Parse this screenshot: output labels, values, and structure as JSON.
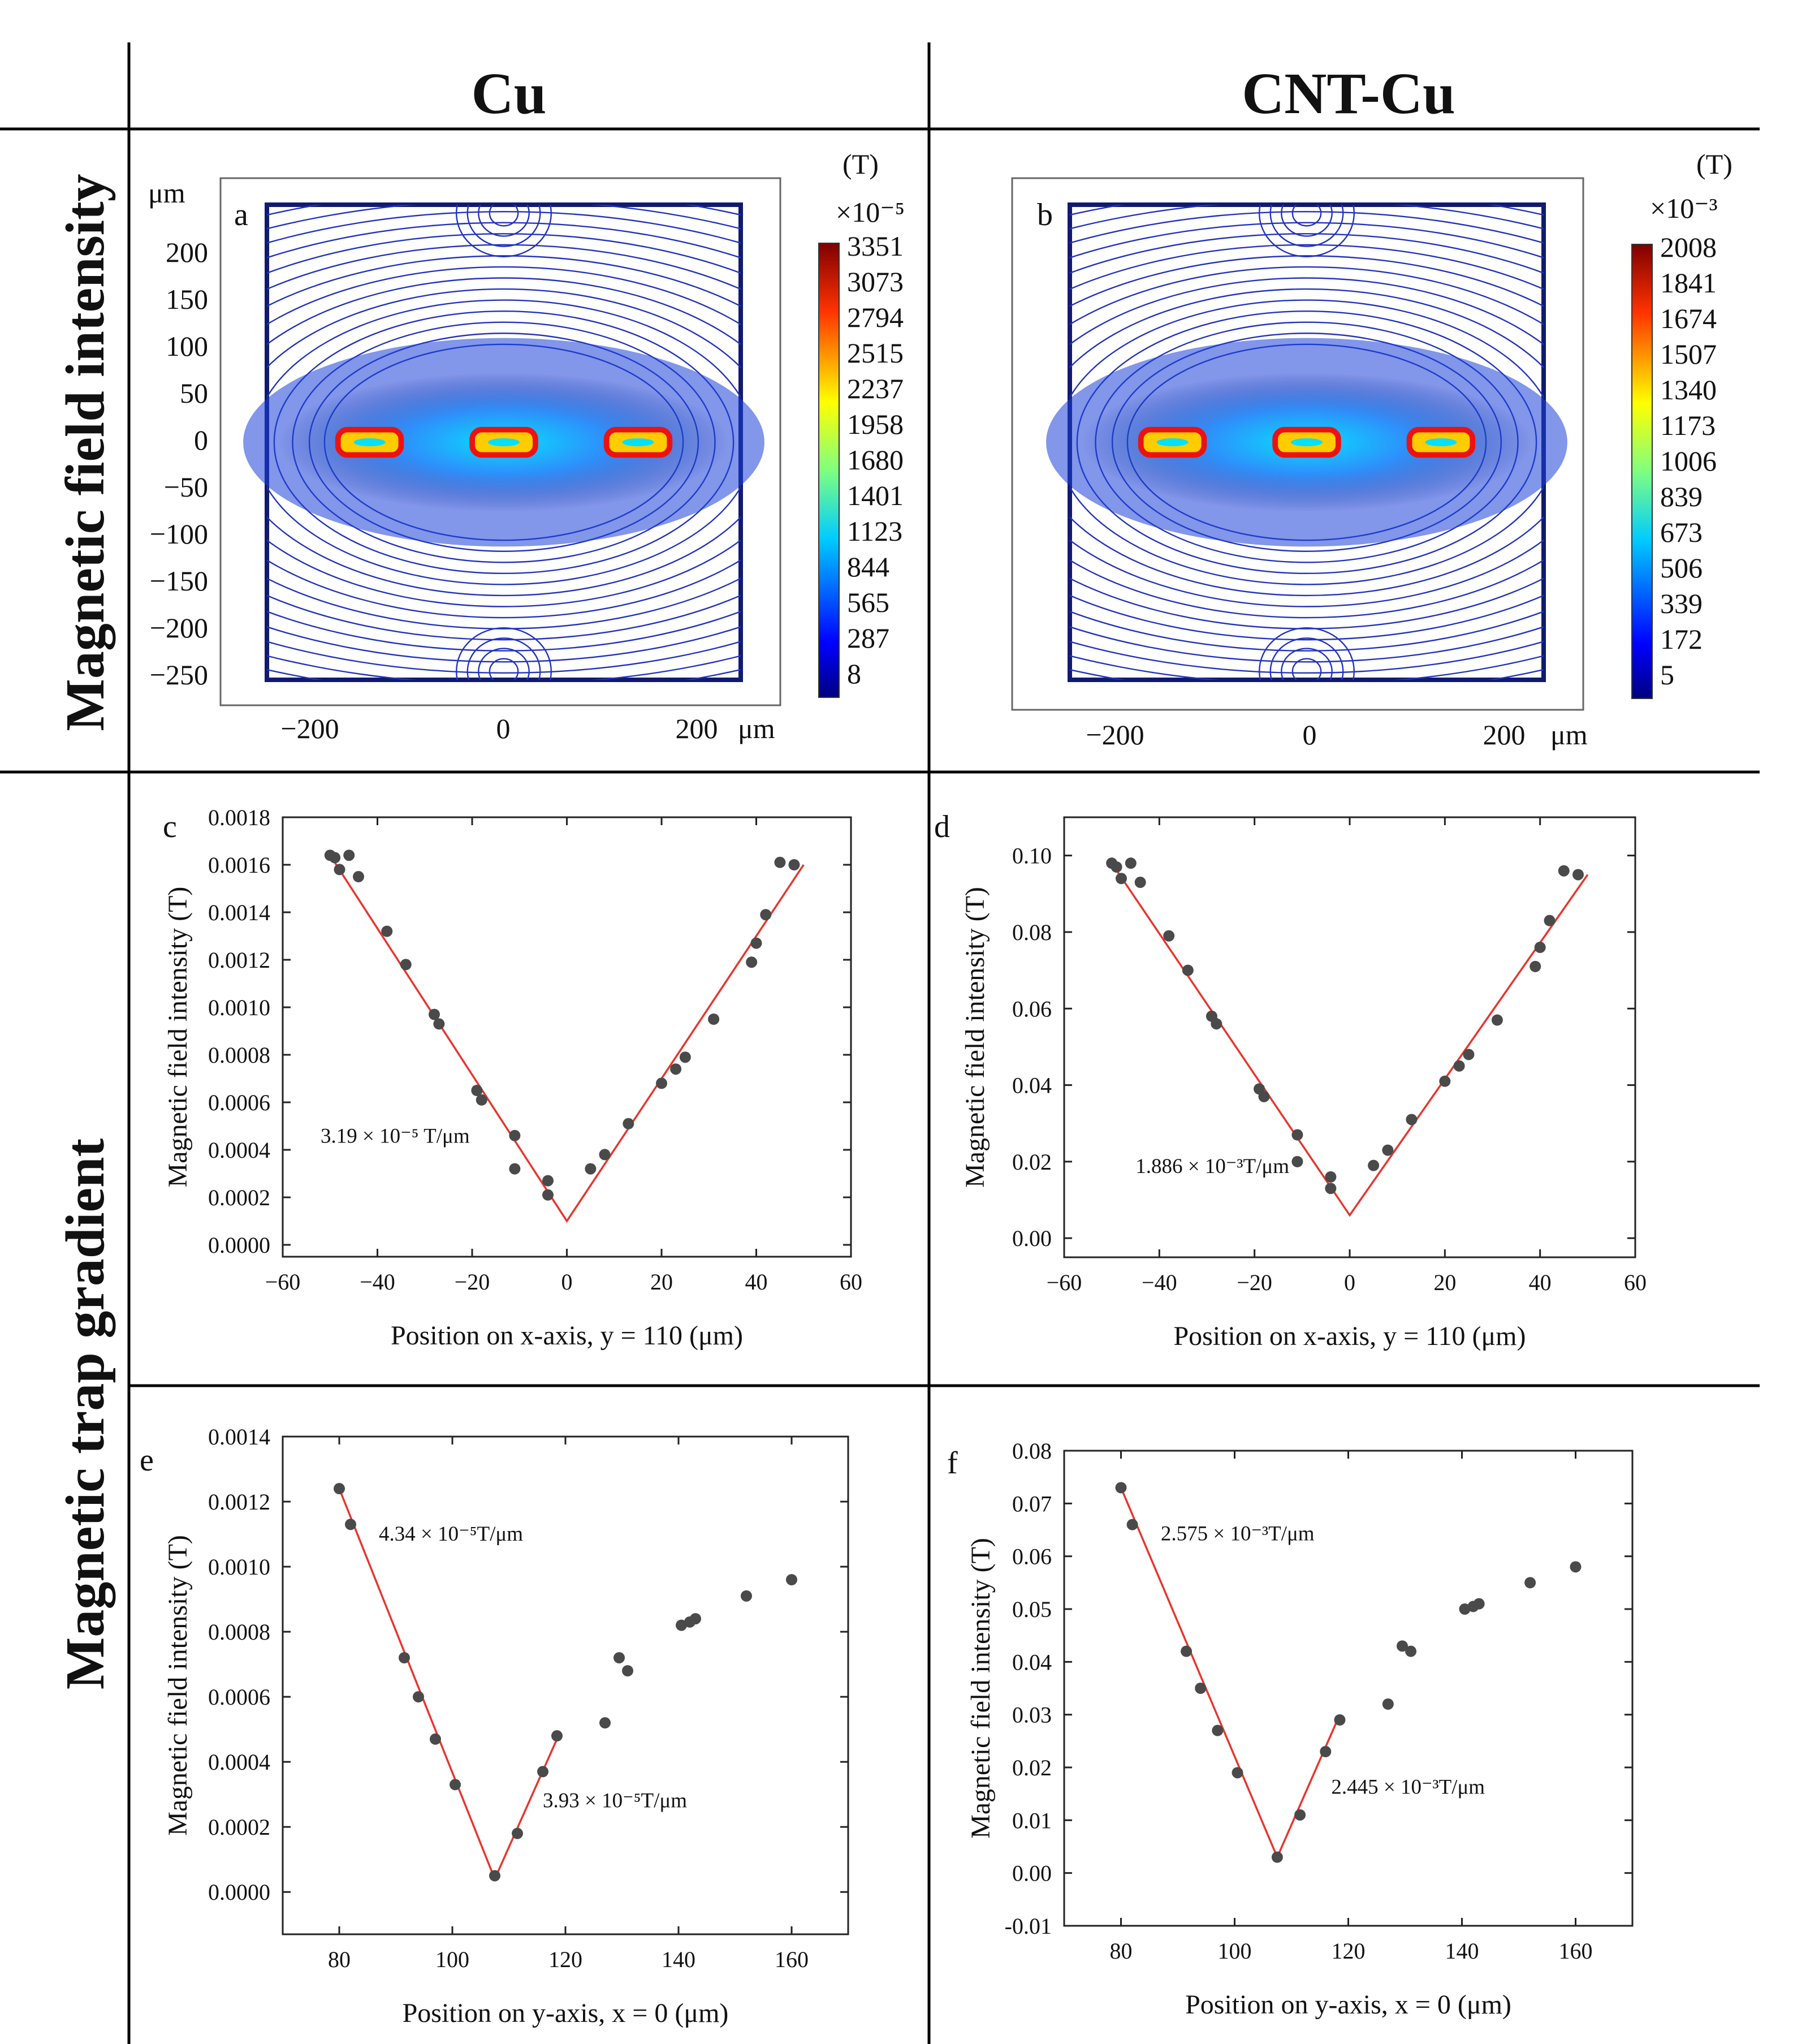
{
  "header": {
    "col1": "Cu",
    "col2": "CNT-Cu"
  },
  "rows": {
    "row1": "Magnetic field intensity",
    "row2": "Magnetic trap gradient"
  },
  "maps": [
    {
      "panel": "a",
      "unit_label": "(T)",
      "scale_label": "×10⁻⁵",
      "y_unit": "μm",
      "x_unit": "μm",
      "colorbar_ticks": [
        "3351",
        "3073",
        "2794",
        "2515",
        "2237",
        "1958",
        "1680",
        "1401",
        "1123",
        "844",
        "565",
        "287",
        "8"
      ],
      "y_ticks": [
        "200",
        "150",
        "100",
        "50",
        "0",
        "−50",
        "−100",
        "−150",
        "−200",
        "−250"
      ],
      "x_ticks": [
        "−200",
        "0",
        "200"
      ]
    },
    {
      "panel": "b",
      "unit_label": "(T)",
      "scale_label": "×10⁻³",
      "x_unit": "μm",
      "colorbar_ticks": [
        "2008",
        "1841",
        "1674",
        "1507",
        "1340",
        "1173",
        "1006",
        "839",
        "673",
        "506",
        "339",
        "172",
        "5"
      ],
      "x_ticks": [
        "−200",
        "0",
        "200"
      ]
    }
  ],
  "colors": {
    "colormap": [
      "#00007f",
      "#0000ff",
      "#007fff",
      "#00ffff",
      "#7fff7f",
      "#ffff00",
      "#ff7f00",
      "#ff0000",
      "#7f0000"
    ],
    "points": "#4a4a4a",
    "fit": "#e8352e",
    "contour": "#2233bb"
  },
  "chart_data": [
    {
      "panel": "c",
      "type": "scatter",
      "xlabel": "Position on x-axis, y = 110 (μm)",
      "ylabel": "Magnetic field intensity (T)",
      "xlim": [
        -60,
        60
      ],
      "ylim": [
        -5e-05,
        0.0018
      ],
      "x_ticks": [
        "−60",
        "−40",
        "−20",
        "0",
        "20",
        "40",
        "60"
      ],
      "y_ticks": [
        "0.0000",
        "0.0002",
        "0.0004",
        "0.0006",
        "0.0008",
        "0.0010",
        "0.0012",
        "0.0014",
        "0.0016",
        "0.0018"
      ],
      "points": [
        [
          -50,
          0.00164
        ],
        [
          -49,
          0.00163
        ],
        [
          -48,
          0.00158
        ],
        [
          -46,
          0.00164
        ],
        [
          -44,
          0.00155
        ],
        [
          -38,
          0.00132
        ],
        [
          -34,
          0.00118
        ],
        [
          -28,
          0.00097
        ],
        [
          -27,
          0.00093
        ],
        [
          -19,
          0.00065
        ],
        [
          -18,
          0.00061
        ],
        [
          -11,
          0.00046
        ],
        [
          -11,
          0.00032
        ],
        [
          -4,
          0.00027
        ],
        [
          -4,
          0.00021
        ],
        [
          5,
          0.00032
        ],
        [
          8,
          0.00038
        ],
        [
          13,
          0.00051
        ],
        [
          20,
          0.00068
        ],
        [
          23,
          0.00074
        ],
        [
          25,
          0.00079
        ],
        [
          31,
          0.00095
        ],
        [
          39,
          0.00119
        ],
        [
          40,
          0.00127
        ],
        [
          42,
          0.00139
        ],
        [
          45,
          0.00161
        ],
        [
          48,
          0.0016
        ]
      ],
      "fit_lines": [
        {
          "x": [
            -50,
            0,
            50
          ],
          "y": [
            0.00164,
            0.0001,
            0.0016
          ]
        }
      ],
      "annotations": [
        {
          "text": "3.19 × 10⁻⁵ T/μm",
          "x": -52,
          "y": 0.00043
        }
      ]
    },
    {
      "panel": "d",
      "type": "scatter",
      "xlabel": "Position on x-axis, y = 110 (μm)",
      "ylabel": "Magnetic field intensity (T)",
      "xlim": [
        -60,
        60
      ],
      "ylim": [
        -0.005,
        0.11
      ],
      "x_ticks": [
        "−60",
        "−40",
        "−20",
        "0",
        "20",
        "40",
        "60"
      ],
      "y_ticks": [
        "0.00",
        "0.02",
        "0.04",
        "0.06",
        "0.08",
        "0.10"
      ],
      "points": [
        [
          -50,
          0.098
        ],
        [
          -49,
          0.097
        ],
        [
          -48,
          0.094
        ],
        [
          -46,
          0.098
        ],
        [
          -44,
          0.093
        ],
        [
          -38,
          0.079
        ],
        [
          -34,
          0.07
        ],
        [
          -29,
          0.058
        ],
        [
          -28,
          0.056
        ],
        [
          -19,
          0.039
        ],
        [
          -18,
          0.037
        ],
        [
          -11,
          0.027
        ],
        [
          -11,
          0.02
        ],
        [
          -4,
          0.016
        ],
        [
          -4,
          0.013
        ],
        [
          5,
          0.019
        ],
        [
          8,
          0.023
        ],
        [
          13,
          0.031
        ],
        [
          20,
          0.041
        ],
        [
          23,
          0.045
        ],
        [
          25,
          0.048
        ],
        [
          31,
          0.057
        ],
        [
          39,
          0.071
        ],
        [
          40,
          0.076
        ],
        [
          42,
          0.083
        ],
        [
          45,
          0.096
        ],
        [
          48,
          0.095
        ]
      ],
      "fit_lines": [
        {
          "x": [
            -50,
            0,
            50
          ],
          "y": [
            0.098,
            0.006,
            0.095
          ]
        }
      ],
      "annotations": [
        {
          "text": "1.886 × 10⁻³T/μm",
          "x": -45,
          "y": 0.017
        }
      ]
    },
    {
      "panel": "e",
      "type": "scatter",
      "xlabel": "Position on y-axis, x = 0 (μm)",
      "ylabel": "Magnetic field intensity (T)",
      "xlim": [
        70,
        170
      ],
      "ylim": [
        -0.00013,
        0.0014
      ],
      "x_ticks": [
        "80",
        "100",
        "120",
        "140",
        "160"
      ],
      "y_ticks": [
        "0.0000",
        "0.0002",
        "0.0004",
        "0.0006",
        "0.0008",
        "0.0010",
        "0.0012",
        "0.0014"
      ],
      "points": [
        [
          80,
          0.00124
        ],
        [
          82,
          0.00113
        ],
        [
          91.5,
          0.00072
        ],
        [
          94,
          0.0006
        ],
        [
          97,
          0.00047
        ],
        [
          100.5,
          0.00033
        ],
        [
          107.5,
          5e-05
        ],
        [
          111.5,
          0.00018
        ],
        [
          116,
          0.00037
        ],
        [
          118.5,
          0.00048
        ],
        [
          127,
          0.00052
        ],
        [
          129.5,
          0.00072
        ],
        [
          131,
          0.00068
        ],
        [
          140.5,
          0.00082
        ],
        [
          142,
          0.00083
        ],
        [
          143,
          0.00084
        ],
        [
          152,
          0.00091
        ],
        [
          160,
          0.00096
        ]
      ],
      "fit_lines": [
        {
          "x": [
            80,
            107.5
          ],
          "y": [
            0.00124,
            4e-05
          ]
        },
        {
          "x": [
            107.5,
            118.5
          ],
          "y": [
            4e-05,
            0.00047
          ]
        }
      ],
      "annotations": [
        {
          "text": "4.34 × 10⁻⁵T/μm",
          "x": 87,
          "y": 0.00108
        },
        {
          "text": "3.93 × 10⁻⁵T/μm",
          "x": 116,
          "y": 0.00026
        }
      ]
    },
    {
      "panel": "f",
      "type": "scatter",
      "xlabel": "Position on y-axis, x = 0 (μm)",
      "ylabel": "Magnetic field intensity (T)",
      "xlim": [
        70,
        170
      ],
      "ylim": [
        -0.01,
        0.08
      ],
      "x_ticks": [
        "80",
        "100",
        "120",
        "140",
        "160"
      ],
      "y_ticks": [
        "-0.01",
        "0.00",
        "0.01",
        "0.02",
        "0.03",
        "0.04",
        "0.05",
        "0.06",
        "0.07",
        "0.08"
      ],
      "points": [
        [
          80,
          0.073
        ],
        [
          82,
          0.066
        ],
        [
          91.5,
          0.042
        ],
        [
          94,
          0.035
        ],
        [
          97,
          0.027
        ],
        [
          100.5,
          0.019
        ],
        [
          107.5,
          0.003
        ],
        [
          111.5,
          0.011
        ],
        [
          116,
          0.023
        ],
        [
          118.5,
          0.029
        ],
        [
          127,
          0.032
        ],
        [
          129.5,
          0.043
        ],
        [
          131,
          0.042
        ],
        [
          140.5,
          0.05
        ],
        [
          142,
          0.0505
        ],
        [
          143,
          0.051
        ],
        [
          152,
          0.055
        ],
        [
          160,
          0.058
        ]
      ],
      "fit_lines": [
        {
          "x": [
            80,
            107.5
          ],
          "y": [
            0.073,
            0.003
          ]
        },
        {
          "x": [
            107.5,
            118.5
          ],
          "y": [
            0.003,
            0.03
          ]
        }
      ],
      "annotations": [
        {
          "text": "2.575 × 10⁻³T/μm",
          "x": 87,
          "y": 0.063
        },
        {
          "text": "2.445 × 10⁻³T/μm",
          "x": 117,
          "y": 0.015
        }
      ]
    }
  ]
}
